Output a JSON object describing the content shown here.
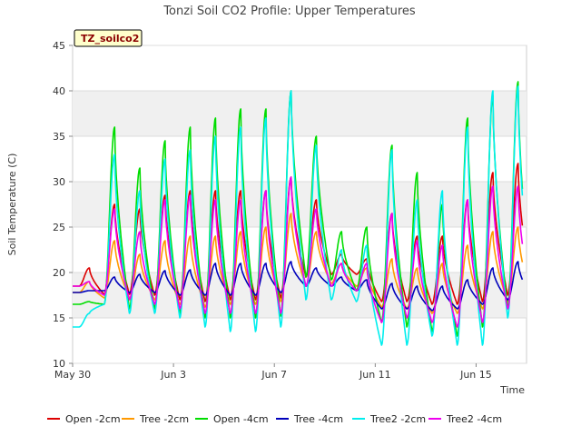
{
  "chart_data": {
    "type": "line",
    "title": "Tonzi Soil CO2 Profile: Upper Temperatures",
    "xlabel": "Time",
    "ylabel": "Soil Temperature (C)",
    "badge": "TZ_soilco2",
    "ylim": [
      10,
      45
    ],
    "yticks": [
      10,
      15,
      20,
      25,
      30,
      35,
      40,
      45
    ],
    "xlim": [
      "2024-05-30",
      "2024-06-17"
    ],
    "xticks": [
      {
        "date": "2024-05-30",
        "label": "May 30"
      },
      {
        "date": "2024-06-03",
        "label": "Jun 3"
      },
      {
        "date": "2024-06-07",
        "label": "Jun 7"
      },
      {
        "date": "2024-06-11",
        "label": "Jun 11"
      },
      {
        "date": "2024-06-15",
        "label": "Jun 15"
      }
    ],
    "grid": "horizontal bands",
    "legend_position": "bottom",
    "x": [
      "2024-05-30",
      "2024-05-31",
      "2024-06-01",
      "2024-06-02",
      "2024-06-03",
      "2024-06-04",
      "2024-06-05",
      "2024-06-06",
      "2024-06-07",
      "2024-06-08",
      "2024-06-09",
      "2024-06-10",
      "2024-06-11",
      "2024-06-12",
      "2024-06-13",
      "2024-06-14",
      "2024-06-15",
      "2024-06-16"
    ],
    "series": [
      {
        "name": "Open -2cm",
        "color": "#dd0000",
        "min": [
          18.5,
          17.6,
          17.6,
          17.5,
          17.0,
          16.8,
          17.0,
          17.0,
          17.2,
          19.5,
          19.8,
          19.8,
          16.8,
          16.8,
          16.5,
          16.5,
          16.8,
          17.5
        ],
        "max": [
          20.5,
          27.5,
          27.0,
          28.5,
          29.0,
          29.0,
          29.0,
          29.0,
          30.5,
          28.0,
          22.0,
          21.5,
          26.5,
          24.0,
          24.0,
          28.0,
          31.0,
          32.0
        ]
      },
      {
        "name": "Tree -2cm",
        "color": "#ff9900",
        "min": [
          17.8,
          17.2,
          17.2,
          17.0,
          16.5,
          16.2,
          16.5,
          16.5,
          16.8,
          18.5,
          18.8,
          18.5,
          16.2,
          16.0,
          15.5,
          15.5,
          16.0,
          16.8
        ],
        "max": [
          19.0,
          23.5,
          22.0,
          23.5,
          24.0,
          24.0,
          24.5,
          25.0,
          26.5,
          24.5,
          21.0,
          20.5,
          21.5,
          20.5,
          21.0,
          23.0,
          24.5,
          25.0
        ]
      },
      {
        "name": "Open -4cm",
        "color": "#00dd00",
        "min": [
          16.5,
          16.5,
          16.0,
          16.0,
          15.5,
          15.0,
          15.0,
          15.0,
          15.2,
          19.5,
          19.2,
          18.0,
          14.5,
          14.0,
          13.5,
          13.0,
          14.0,
          16.0
        ],
        "max": [
          16.8,
          36.0,
          31.5,
          34.5,
          36.0,
          37.0,
          38.0,
          38.0,
          40.0,
          35.0,
          24.5,
          25.0,
          34.0,
          31.0,
          27.5,
          37.0,
          39.5,
          41.0
        ]
      },
      {
        "name": "Tree -4cm",
        "color": "#0000bb",
        "min": [
          17.8,
          18.0,
          17.8,
          17.8,
          17.5,
          17.5,
          17.5,
          17.5,
          17.8,
          18.5,
          18.5,
          18.0,
          16.0,
          16.0,
          15.8,
          16.0,
          16.5,
          17.0
        ],
        "max": [
          18.0,
          19.5,
          19.8,
          20.2,
          20.3,
          21.0,
          21.0,
          21.0,
          21.2,
          20.5,
          19.5,
          19.2,
          18.8,
          18.5,
          18.5,
          19.2,
          20.5,
          21.2
        ]
      },
      {
        "name": "Tree2 -2cm",
        "color": "#00eeee",
        "min": [
          14.0,
          16.5,
          15.5,
          15.5,
          15.0,
          14.0,
          13.5,
          13.5,
          14.0,
          17.0,
          17.0,
          16.8,
          12.0,
          12.0,
          13.0,
          12.0,
          12.0,
          15.0
        ],
        "max": [
          15.5,
          33.0,
          29.0,
          32.5,
          33.5,
          35.0,
          36.0,
          37.0,
          40.0,
          34.0,
          22.5,
          23.0,
          33.5,
          28.0,
          29.0,
          36.0,
          40.0,
          40.5
        ]
      },
      {
        "name": "Tree2 -4cm",
        "color": "#ee00ee",
        "min": [
          18.5,
          17.5,
          17.0,
          16.5,
          16.0,
          15.5,
          15.5,
          15.5,
          15.5,
          18.5,
          18.5,
          18.0,
          14.5,
          15.0,
          14.5,
          14.0,
          14.5,
          16.0
        ],
        "max": [
          19.0,
          27.0,
          24.5,
          28.0,
          28.5,
          28.0,
          28.0,
          29.0,
          30.5,
          27.0,
          21.0,
          21.0,
          26.5,
          23.5,
          23.0,
          28.0,
          29.5,
          29.5
        ]
      }
    ]
  }
}
